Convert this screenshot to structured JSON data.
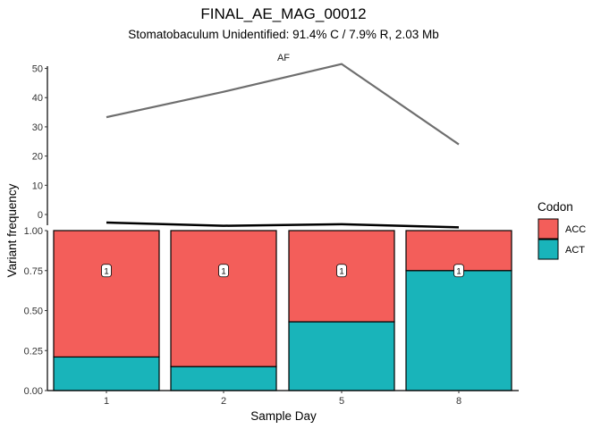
{
  "chart_data": {
    "type": "bar",
    "title": "FINAL_AE_MAG_00012",
    "subtitle": "Stomatobaculum Unidentified: 91.4% C / 7.9% R, 2.03 Mb",
    "xlabel": "Sample Day",
    "ylabel": "Variant frequency",
    "categories": [
      "1",
      "2",
      "5",
      "8"
    ],
    "stacked": true,
    "ylim": [
      0,
      1
    ],
    "yticks": [
      "0.00",
      "0.25",
      "0.50",
      "0.75",
      "1.00"
    ],
    "series": [
      {
        "name": "ACT",
        "color": "#19B4BA",
        "values": [
          0.21,
          0.15,
          0.43,
          0.75
        ]
      },
      {
        "name": "ACC",
        "color": "#F35E5A",
        "values": [
          0.79,
          0.85,
          0.57,
          0.25
        ]
      }
    ],
    "bar_labels": [
      "1",
      "1",
      "1",
      "1"
    ],
    "bar_label_y": [
      0.75,
      0.75,
      0.75,
      0.75
    ],
    "legend": {
      "title": "Codon",
      "entries": [
        "ACC",
        "ACT"
      ],
      "colors": [
        "#F35E5A",
        "#19B4BA"
      ],
      "position": "right"
    },
    "grid": false,
    "top_panel": {
      "type": "line",
      "label": "AF",
      "x": [
        "1",
        "2",
        "5",
        "8"
      ],
      "values": [
        33.3,
        42,
        51.5,
        24
      ],
      "ylim": [
        0,
        52
      ],
      "yticks": [
        "0",
        "10",
        "20",
        "30",
        "40",
        "50"
      ],
      "color": "#6E6E6E"
    },
    "coverage_line": {
      "values": [
        1.05,
        1.03,
        1.04,
        1.02
      ],
      "color": "#000000"
    }
  }
}
